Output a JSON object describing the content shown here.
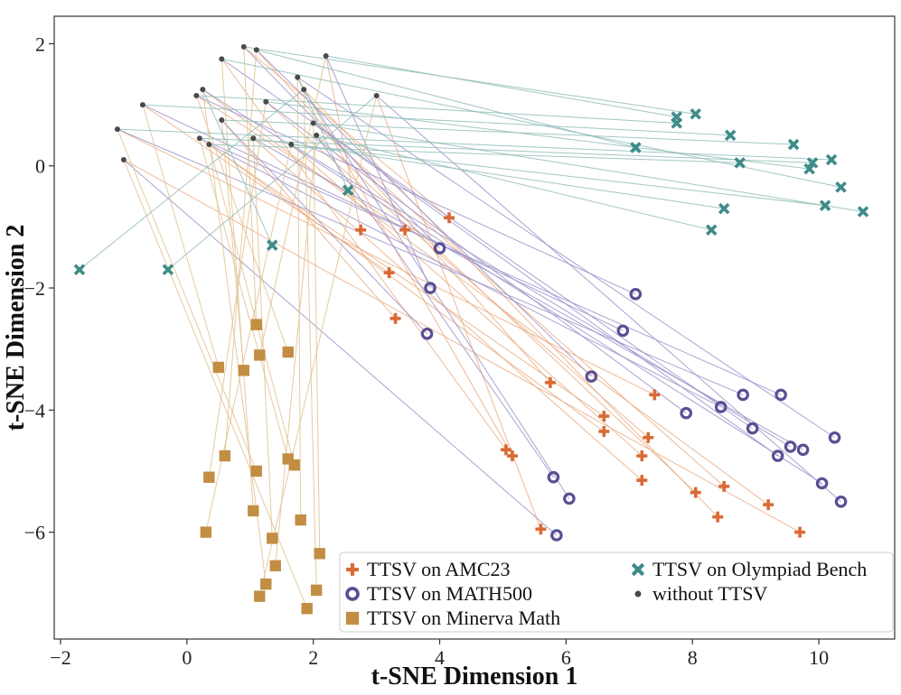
{
  "chart_data": {
    "type": "scatter",
    "title": "",
    "xlabel": "t-SNE Dimension 1",
    "ylabel": "t-SNE Dimension 2",
    "xlim": [
      -2.1,
      11.2
    ],
    "ylim": [
      -7.75,
      2.45
    ],
    "x_ticks": [
      -2,
      0,
      2,
      4,
      6,
      8,
      10
    ],
    "y_ticks": [
      -6,
      -4,
      -2,
      0,
      2
    ],
    "x_tick_labels": [
      "−2",
      "0",
      "2",
      "4",
      "6",
      "8",
      "10"
    ],
    "y_tick_labels": [
      "−6",
      "−4",
      "−2",
      "0",
      "2"
    ],
    "grid": false,
    "legend_position": "lower-right",
    "colors": {
      "amc23": "#D96A35",
      "math500": "#5B4E93",
      "minerva": "#C18E43",
      "olympiad": "#3D8C89",
      "without": "#4A4A4A",
      "link_amc23": "#EAAE85",
      "link_math500": "#9C93CA",
      "link_minerva": "#E0C28F",
      "link_olympiad": "#90BDB9"
    },
    "series": [
      {
        "key": "amc23",
        "name": "TTSV on AMC23",
        "marker": "plus",
        "points": [
          [
            4.15,
            -0.85
          ],
          [
            2.75,
            -1.05
          ],
          [
            3.45,
            -1.05
          ],
          [
            3.2,
            -1.75
          ],
          [
            3.3,
            -2.5
          ],
          [
            5.75,
            -3.55
          ],
          [
            7.4,
            -3.75
          ],
          [
            6.6,
            -4.1
          ],
          [
            6.6,
            -4.35
          ],
          [
            7.3,
            -4.45
          ],
          [
            5.05,
            -4.65
          ],
          [
            5.15,
            -4.75
          ],
          [
            7.2,
            -4.75
          ],
          [
            7.2,
            -5.15
          ],
          [
            8.5,
            -5.25
          ],
          [
            8.05,
            -5.35
          ],
          [
            9.2,
            -5.55
          ],
          [
            8.4,
            -5.75
          ],
          [
            5.6,
            -5.95
          ],
          [
            9.7,
            -6.0
          ]
        ],
        "sources": [
          [
            0.9,
            1.95
          ],
          [
            2.2,
            1.8
          ],
          [
            0.15,
            1.15
          ],
          [
            -0.7,
            1.0
          ],
          [
            0.55,
            0.75
          ],
          [
            1.1,
            1.9
          ],
          [
            -1.1,
            0.6
          ],
          [
            0.2,
            0.45
          ],
          [
            0.35,
            0.35
          ],
          [
            1.25,
            1.05
          ],
          [
            0.55,
            1.75
          ],
          [
            1.75,
            1.45
          ],
          [
            1.65,
            0.35
          ],
          [
            1.05,
            0.45
          ],
          [
            2.0,
            0.7
          ],
          [
            2.05,
            0.5
          ],
          [
            0.25,
            1.25
          ],
          [
            1.85,
            1.25
          ],
          [
            3.0,
            1.15
          ],
          [
            -1.0,
            0.1
          ]
        ]
      },
      {
        "key": "math500",
        "name": "TTSV on MATH500",
        "marker": "circle",
        "points": [
          [
            4.0,
            -1.35
          ],
          [
            3.85,
            -2.0
          ],
          [
            7.1,
            -2.1
          ],
          [
            6.9,
            -2.7
          ],
          [
            3.8,
            -2.75
          ],
          [
            6.4,
            -3.45
          ],
          [
            8.8,
            -3.75
          ],
          [
            9.4,
            -3.75
          ],
          [
            8.45,
            -3.95
          ],
          [
            7.9,
            -4.05
          ],
          [
            8.95,
            -4.3
          ],
          [
            10.25,
            -4.45
          ],
          [
            9.55,
            -4.6
          ],
          [
            9.75,
            -4.65
          ],
          [
            9.35,
            -4.75
          ],
          [
            5.8,
            -5.1
          ],
          [
            10.05,
            -5.2
          ],
          [
            6.05,
            -5.45
          ],
          [
            10.35,
            -5.5
          ],
          [
            5.85,
            -6.05
          ]
        ],
        "sources": [
          [
            0.9,
            1.95
          ],
          [
            2.2,
            1.8
          ],
          [
            0.15,
            1.15
          ],
          [
            -0.7,
            1.0
          ],
          [
            0.55,
            0.75
          ],
          [
            1.1,
            1.9
          ],
          [
            -1.1,
            0.6
          ],
          [
            0.2,
            0.45
          ],
          [
            0.35,
            0.35
          ],
          [
            1.25,
            1.05
          ],
          [
            0.55,
            1.75
          ],
          [
            1.75,
            1.45
          ],
          [
            1.65,
            0.35
          ],
          [
            1.05,
            0.45
          ],
          [
            2.0,
            0.7
          ],
          [
            2.05,
            0.5
          ],
          [
            0.25,
            1.25
          ],
          [
            1.85,
            1.25
          ],
          [
            3.0,
            1.15
          ],
          [
            -1.0,
            0.1
          ]
        ]
      },
      {
        "key": "minerva",
        "name": "TTSV on Minerva Math",
        "marker": "square",
        "points": [
          [
            1.1,
            -2.6
          ],
          [
            1.15,
            -3.1
          ],
          [
            1.6,
            -3.05
          ],
          [
            0.5,
            -3.3
          ],
          [
            0.9,
            -3.35
          ],
          [
            0.6,
            -4.75
          ],
          [
            1.1,
            -5.0
          ],
          [
            1.6,
            -4.8
          ],
          [
            1.7,
            -4.9
          ],
          [
            0.35,
            -5.1
          ],
          [
            1.05,
            -5.65
          ],
          [
            1.8,
            -5.8
          ],
          [
            0.3,
            -6.0
          ],
          [
            1.35,
            -6.1
          ],
          [
            2.1,
            -6.35
          ],
          [
            1.4,
            -6.55
          ],
          [
            1.25,
            -6.85
          ],
          [
            2.05,
            -6.95
          ],
          [
            1.15,
            -7.05
          ],
          [
            1.9,
            -7.25
          ]
        ],
        "sources": [
          [
            0.9,
            1.95
          ],
          [
            2.2,
            1.8
          ],
          [
            0.15,
            1.15
          ],
          [
            -0.7,
            1.0
          ],
          [
            0.55,
            0.75
          ],
          [
            1.1,
            1.9
          ],
          [
            -1.1,
            0.6
          ],
          [
            0.2,
            0.45
          ],
          [
            0.35,
            0.35
          ],
          [
            1.25,
            1.05
          ],
          [
            0.55,
            1.75
          ],
          [
            1.75,
            1.45
          ],
          [
            1.65,
            0.35
          ],
          [
            1.05,
            0.45
          ],
          [
            2.0,
            0.7
          ],
          [
            2.05,
            0.5
          ],
          [
            0.25,
            1.25
          ],
          [
            1.85,
            1.25
          ],
          [
            3.0,
            1.15
          ],
          [
            -1.0,
            0.1
          ]
        ]
      },
      {
        "key": "olympiad",
        "name": "TTSV on Olympiad Bench",
        "marker": "x",
        "points": [
          [
            8.05,
            0.85
          ],
          [
            7.75,
            0.8
          ],
          [
            7.75,
            0.7
          ],
          [
            8.6,
            0.5
          ],
          [
            9.6,
            0.35
          ],
          [
            7.1,
            0.3
          ],
          [
            10.2,
            0.1
          ],
          [
            9.9,
            0.05
          ],
          [
            8.75,
            0.05
          ],
          [
            9.85,
            -0.05
          ],
          [
            10.35,
            -0.35
          ],
          [
            2.55,
            -0.4
          ],
          [
            10.1,
            -0.65
          ],
          [
            8.5,
            -0.7
          ],
          [
            10.7,
            -0.75
          ],
          [
            8.3,
            -1.05
          ],
          [
            1.35,
            -1.3
          ],
          [
            -1.7,
            -1.7
          ],
          [
            -0.3,
            -1.7
          ]
        ],
        "sources": [
          [
            0.9,
            1.95
          ],
          [
            2.2,
            1.8
          ],
          [
            0.15,
            1.15
          ],
          [
            -0.7,
            1.0
          ],
          [
            0.55,
            0.75
          ],
          [
            1.1,
            1.9
          ],
          [
            -1.1,
            0.6
          ],
          [
            0.2,
            0.45
          ],
          [
            0.35,
            0.35
          ],
          [
            1.25,
            1.05
          ],
          [
            0.55,
            1.75
          ],
          [
            1.75,
            1.45
          ],
          [
            1.65,
            0.35
          ],
          [
            1.05,
            0.45
          ],
          [
            2.0,
            0.7
          ],
          [
            2.05,
            0.5
          ],
          [
            0.25,
            1.25
          ],
          [
            1.85,
            1.25
          ],
          [
            3.0,
            1.15
          ]
        ]
      },
      {
        "key": "without",
        "name": "without TTSV",
        "marker": "dot",
        "points": [
          [
            0.9,
            1.95
          ],
          [
            1.1,
            1.9
          ],
          [
            2.2,
            1.8
          ],
          [
            0.55,
            1.75
          ],
          [
            1.75,
            1.45
          ],
          [
            0.25,
            1.25
          ],
          [
            1.85,
            1.25
          ],
          [
            0.15,
            1.15
          ],
          [
            3.0,
            1.15
          ],
          [
            1.25,
            1.05
          ],
          [
            -0.7,
            1.0
          ],
          [
            0.55,
            0.75
          ],
          [
            2.0,
            0.7
          ],
          [
            -1.1,
            0.6
          ],
          [
            2.05,
            0.5
          ],
          [
            0.2,
            0.45
          ],
          [
            1.05,
            0.45
          ],
          [
            0.35,
            0.35
          ],
          [
            1.65,
            0.35
          ],
          [
            -1.0,
            0.1
          ]
        ]
      }
    ],
    "legend_order": [
      "amc23",
      "olympiad",
      "math500",
      "without",
      "minerva"
    ]
  }
}
